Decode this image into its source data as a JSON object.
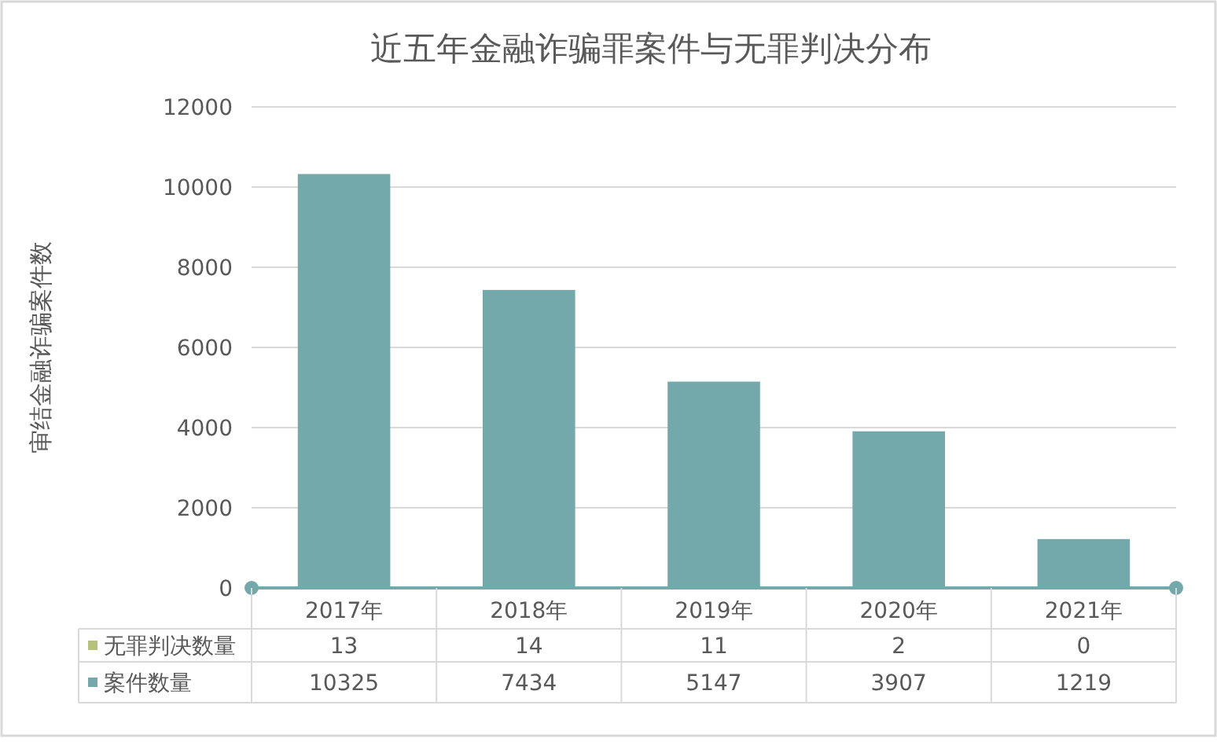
{
  "chart_data": {
    "type": "bar",
    "title": "近五年金融诈骗罪案件与无罪判决分布",
    "ylabel": "审结金融诈骗案件数",
    "categories": [
      "2017年",
      "2018年",
      "2019年",
      "2020年",
      "2021年"
    ],
    "series": [
      {
        "name": "无罪判决数量",
        "color": "#b5c27a",
        "values": [
          13,
          14,
          11,
          2,
          0
        ]
      },
      {
        "name": "案件数量",
        "color": "#73a9aa",
        "values": [
          10325,
          7434,
          5147,
          3907,
          1219
        ]
      }
    ],
    "ylim": [
      0,
      12000
    ],
    "yticks": [
      0,
      2000,
      4000,
      6000,
      8000,
      10000,
      12000
    ],
    "grid": "y",
    "legend": "bottom",
    "data_labels": true
  }
}
